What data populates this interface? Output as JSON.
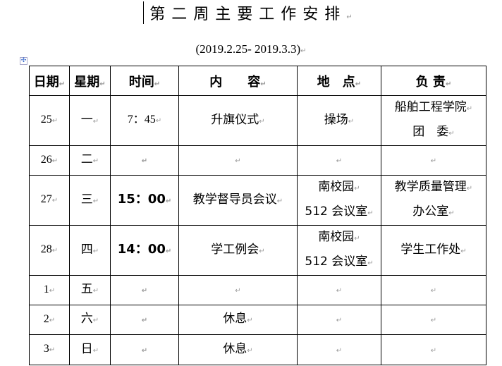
{
  "title": "第二周主要工作安排",
  "subtitle": "(2019.2.25- 2019.3.3)",
  "headers": [
    "日期",
    "星期",
    "时间",
    "内　　容",
    "地　点",
    "负 责"
  ],
  "rows": [
    {
      "date": "25",
      "weekday": "一",
      "time": "7：45",
      "content": "升旗仪式",
      "location": [
        "操场"
      ],
      "owner": [
        "船舶工程学院",
        "团　委"
      ]
    },
    {
      "date": "26",
      "weekday": "二",
      "time": "",
      "content": "",
      "location": [
        ""
      ],
      "owner": [
        ""
      ]
    },
    {
      "date": "27",
      "weekday": "三",
      "time": "15：00",
      "content": "教学督导员会议",
      "location": [
        "南校园",
        "512 会议室"
      ],
      "owner": [
        "教学质量管理",
        "办公室"
      ]
    },
    {
      "date": "28",
      "weekday": "四",
      "time": "14：00",
      "content": "学工例会",
      "location": [
        "南校园",
        "512 会议室"
      ],
      "owner": [
        "学生工作处"
      ]
    },
    {
      "date": "1",
      "weekday": "五",
      "time": "",
      "content": "",
      "location": [
        ""
      ],
      "owner": [
        ""
      ]
    },
    {
      "date": "2",
      "weekday": "六",
      "time": "",
      "content": "休息",
      "location": [
        ""
      ],
      "owner": [
        ""
      ]
    },
    {
      "date": "3",
      "weekday": "日",
      "time": "",
      "content": "休息",
      "location": [
        ""
      ],
      "owner": [
        ""
      ]
    }
  ]
}
